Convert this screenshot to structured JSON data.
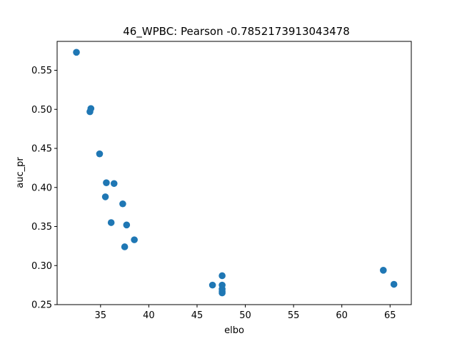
{
  "chart_data": {
    "type": "scatter",
    "title": "46_WPBC: Pearson -0.7852173913043478",
    "xlabel": "elbo",
    "ylabel": "auc_pr",
    "xlim": [
      30.5,
      67.2
    ],
    "ylim": [
      0.25,
      0.587
    ],
    "xticks": [
      35,
      40,
      45,
      50,
      55,
      60,
      65
    ],
    "xtick_labels": [
      "35",
      "40",
      "45",
      "50",
      "55",
      "60",
      "65"
    ],
    "yticks": [
      0.25,
      0.3,
      0.35,
      0.4,
      0.45,
      0.5,
      0.55
    ],
    "ytick_labels": [
      "0.25",
      "0.30",
      "0.35",
      "0.40",
      "0.45",
      "0.50",
      "0.55"
    ],
    "grid": false,
    "marker_color": "#1f77b4",
    "series": [
      {
        "points": [
          {
            "x": 32.5,
            "y": 0.573
          },
          {
            "x": 34.0,
            "y": 0.501
          },
          {
            "x": 33.9,
            "y": 0.497
          },
          {
            "x": 34.9,
            "y": 0.443
          },
          {
            "x": 35.6,
            "y": 0.406
          },
          {
            "x": 36.4,
            "y": 0.405
          },
          {
            "x": 35.5,
            "y": 0.388
          },
          {
            "x": 37.3,
            "y": 0.379
          },
          {
            "x": 36.1,
            "y": 0.355
          },
          {
            "x": 37.7,
            "y": 0.352
          },
          {
            "x": 38.5,
            "y": 0.333
          },
          {
            "x": 37.5,
            "y": 0.324
          },
          {
            "x": 47.6,
            "y": 0.287
          },
          {
            "x": 46.6,
            "y": 0.275
          },
          {
            "x": 47.6,
            "y": 0.275
          },
          {
            "x": 47.6,
            "y": 0.27
          },
          {
            "x": 47.6,
            "y": 0.267
          },
          {
            "x": 47.6,
            "y": 0.265
          },
          {
            "x": 64.3,
            "y": 0.294
          },
          {
            "x": 65.4,
            "y": 0.276
          }
        ]
      }
    ]
  }
}
